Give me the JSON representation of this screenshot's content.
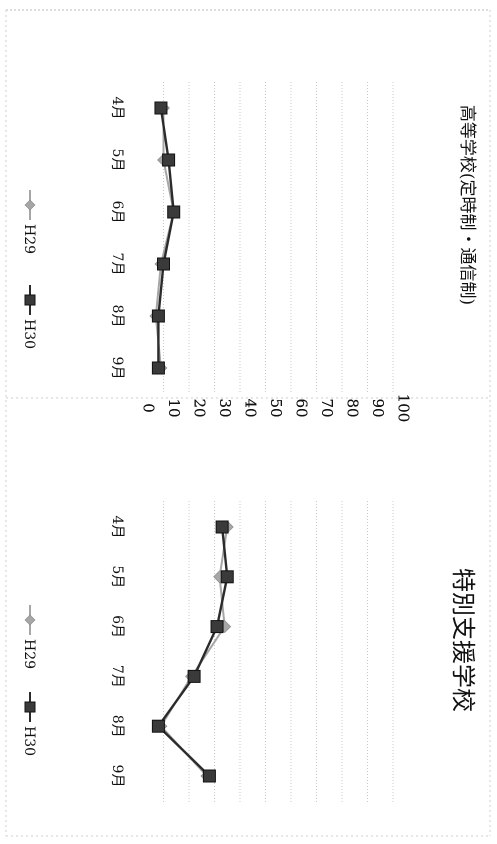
{
  "chart_data": [
    {
      "type": "line",
      "title": "高等学校(定時制・通信制)",
      "categories": [
        "4月",
        "5月",
        "6月",
        "7月",
        "8月",
        "9月"
      ],
      "ylim": [
        0,
        100
      ],
      "yticks": [
        "0",
        "10",
        "20",
        "30",
        "40",
        "50",
        "60",
        "70",
        "80",
        "90",
        "100"
      ],
      "grid": true,
      "legend": "bottom",
      "orientation": "rotated 90° clockwise",
      "series": [
        {
          "name": "H29",
          "values": [
            10,
            10,
            14,
            9,
            7,
            9
          ],
          "color": "#a6a6a6",
          "marker": "diamond"
        },
        {
          "name": "H30",
          "values": [
            9,
            12,
            14,
            10,
            8,
            8
          ],
          "color": "#2b2b2b",
          "marker": "square"
        }
      ]
    },
    {
      "type": "line",
      "title": "特別支援学校",
      "categories": [
        "4月",
        "5月",
        "6月",
        "7月",
        "8月",
        "9月"
      ],
      "ylim": [
        0,
        100
      ],
      "yticks": [
        "0",
        "10",
        "20",
        "30",
        "40",
        "50",
        "60",
        "70",
        "80",
        "90",
        "100"
      ],
      "grid": true,
      "legend": "bottom",
      "orientation": "rotated 90° clockwise",
      "series": [
        {
          "name": "H29",
          "values": [
            35,
            32,
            34,
            21,
            9,
            27
          ],
          "color": "#a6a6a6",
          "marker": "diamond"
        },
        {
          "name": "H30",
          "values": [
            33,
            35,
            31,
            22,
            8,
            28
          ],
          "color": "#2b2b2b",
          "marker": "square"
        }
      ]
    }
  ]
}
